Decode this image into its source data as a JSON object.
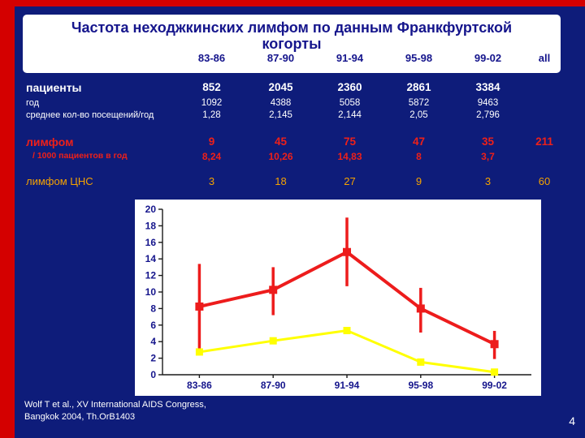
{
  "slide": {
    "title_line1": "Частота неходжкинских лимфом по данным Франкфуртской",
    "title_line2": "когорты",
    "citation_line1": "Wolf T et al., XV International AIDS Congress,",
    "citation_line2": "Bangkok 2004, Th.OrB1403",
    "page_number": "4"
  },
  "table": {
    "column_headers": [
      "83-86",
      "87-90",
      "91-94",
      "95-98",
      "99-02",
      "all"
    ],
    "rows": [
      {
        "label": "пациенты",
        "values": [
          "852",
          "2045",
          "2360",
          "2861",
          "3384",
          ""
        ]
      },
      {
        "label": "год",
        "values": [
          "1092",
          "4388",
          "5058",
          "5872",
          "9463",
          ""
        ]
      },
      {
        "label": "среднее кол-во посещений/год",
        "values": [
          "1,28",
          "2,145",
          "2,144",
          "2,05",
          "2,796",
          ""
        ]
      },
      {
        "label": "лимфом",
        "values": [
          "9",
          "45",
          "75",
          "47",
          "35",
          "211"
        ]
      },
      {
        "label": "/ 1000 пациентов в год",
        "values": [
          "8,24",
          "10,26",
          "14,83",
          "8",
          "3,7",
          ""
        ]
      },
      {
        "label": "лимфом ЦНС",
        "values": [
          "3",
          "18",
          "27",
          "9",
          "3",
          "60"
        ]
      }
    ]
  },
  "chart_data": {
    "type": "line",
    "categories": [
      "83-86",
      "87-90",
      "91-94",
      "95-98",
      "99-02"
    ],
    "series": [
      {
        "name": "лимфом / 1000 пациентов в год",
        "color": "#ed1c1c",
        "values": [
          8.24,
          10.26,
          14.83,
          8,
          3.7
        ],
        "error_low": [
          3.0,
          7.2,
          10.7,
          5.1,
          1.9
        ],
        "error_high": [
          13.4,
          13.0,
          19.0,
          10.5,
          5.3
        ],
        "line_width": 4,
        "marker_size": 10
      },
      {
        "name": "лимфом ЦНС / 1000 пациентов в год",
        "color": "#ffff00",
        "values": [
          2.75,
          4.1,
          5.34,
          1.53,
          0.32
        ],
        "line_width": 3,
        "marker_size": 9
      }
    ],
    "title": "",
    "xlabel": "",
    "ylabel": "",
    "ylim": [
      0,
      20
    ],
    "ytick_step": 2,
    "grid": false,
    "legend": false
  },
  "colors": {
    "background": "#0e1c7a",
    "frame_red": "#d40000",
    "title_blue": "#15158c",
    "table_red": "#ee2019",
    "table_yellow": "#f5a200",
    "chart_red": "#ed1c1c",
    "chart_yellow": "#ffff00"
  }
}
